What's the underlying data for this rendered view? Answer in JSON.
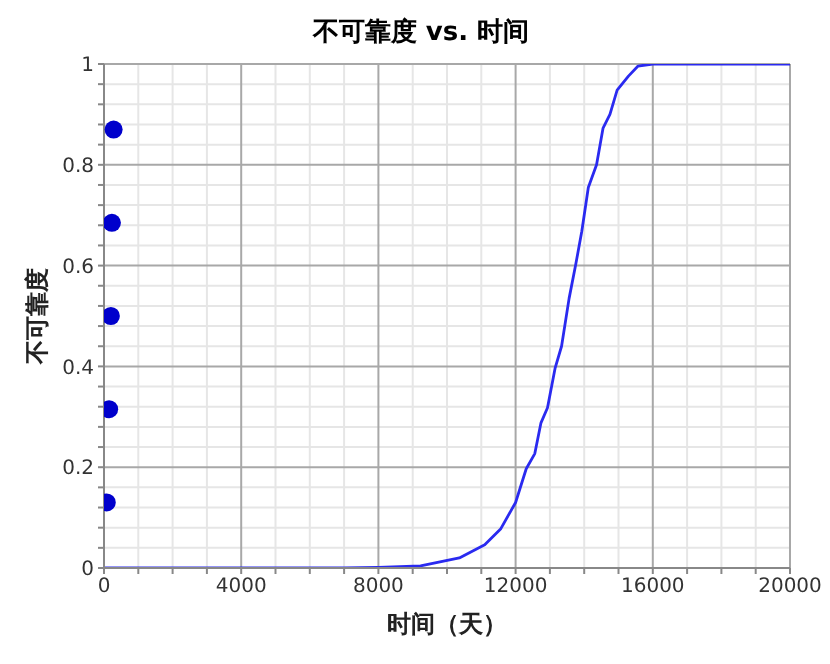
{
  "chart_data": {
    "type": "line",
    "title": "不可靠度 vs. 时间",
    "xlabel": "时间（天）",
    "ylabel": "不可靠度",
    "xlim": [
      0,
      20000
    ],
    "xticks": [
      0,
      {
        "value": 1000,
        "label": null
      },
      {
        "value": 2000,
        "label": null
      },
      {
        "value": 3000,
        "label": null
      },
      4000,
      {
        "value": 5000,
        "label": null
      },
      {
        "value": 6000,
        "label": null
      },
      {
        "value": 7000,
        "label": null
      },
      8000,
      {
        "value": 9000,
        "label": null
      },
      {
        "value": 10000,
        "label": null
      },
      {
        "value": 11000,
        "label": null
      },
      12000,
      {
        "value": 13000,
        "label": null
      },
      {
        "value": 14000,
        "label": null
      },
      {
        "value": 15000,
        "label": null
      },
      16000,
      {
        "value": 17000,
        "label": null
      },
      {
        "value": 18000,
        "label": null
      },
      {
        "value": 19000,
        "label": null
      },
      20000
    ],
    "ylim": [
      0,
      1
    ],
    "yticks": [
      0,
      {
        "value": 0.04,
        "label": null
      },
      {
        "value": 0.08,
        "label": null
      },
      {
        "value": 0.12,
        "label": null
      },
      {
        "value": 0.16,
        "label": null
      },
      0.2,
      {
        "value": 0.24,
        "label": null
      },
      {
        "value": 0.28,
        "label": null
      },
      {
        "value": 0.32,
        "label": null
      },
      {
        "value": 0.36,
        "label": null
      },
      0.4,
      {
        "value": 0.44,
        "label": null
      },
      {
        "value": 0.48,
        "label": null
      },
      {
        "value": 0.52,
        "label": null
      },
      {
        "value": 0.56,
        "label": null
      },
      0.6,
      {
        "value": 0.64,
        "label": null
      },
      {
        "value": 0.68,
        "label": null
      },
      {
        "value": 0.72,
        "label": null
      },
      {
        "value": 0.76,
        "label": null
      },
      0.8,
      {
        "value": 0.84,
        "label": null
      },
      {
        "value": 0.88,
        "label": null
      },
      {
        "value": 0.92,
        "label": null
      },
      {
        "value": 0.96,
        "label": null
      },
      1
    ],
    "grid": true,
    "series": [
      {
        "color": "#2a2af0",
        "marker": "none",
        "line_style": "solid",
        "x": [
          0,
          7000,
          8000,
          9230,
          10360,
          11100,
          11570,
          12000,
          12310,
          12560,
          12740,
          12930,
          13150,
          13340,
          13560,
          13750,
          13930,
          14120,
          14360,
          14550,
          14750,
          14960,
          15290,
          15570,
          16000,
          20000
        ],
        "values": [
          0,
          0,
          0.001,
          0.004,
          0.02,
          0.046,
          0.078,
          0.13,
          0.197,
          0.227,
          0.288,
          0.318,
          0.396,
          0.44,
          0.535,
          0.601,
          0.668,
          0.755,
          0.8,
          0.873,
          0.9,
          0.948,
          0.976,
          0.996,
          1,
          1
        ]
      },
      {
        "type": "scatter",
        "color": "#0000cc",
        "marker": "circle",
        "x": [
          80,
          150,
          200,
          230,
          280
        ],
        "values": [
          0.13,
          0.315,
          0.5,
          0.685,
          0.87
        ]
      }
    ]
  }
}
